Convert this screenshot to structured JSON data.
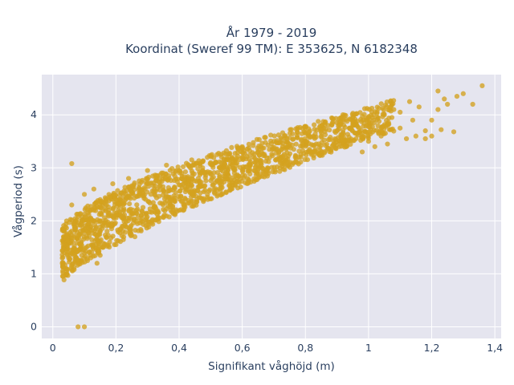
{
  "chart_data": {
    "type": "scatter",
    "title_lines": [
      "År 1979 - 2019",
      "Koordinat (Sweref 99 TM): E 353625, N 6182348"
    ],
    "xlabel": "Signifikant våghöjd (m)",
    "ylabel": "Vågperiod (s)",
    "xlim": [
      -0.035,
      1.42
    ],
    "ylim": [
      -0.22,
      4.76
    ],
    "xticks": [
      0,
      0.2,
      0.4,
      0.6,
      0.8,
      1,
      1.2,
      1.4
    ],
    "xtick_labels": [
      "0",
      "0,2",
      "0,4",
      "0,6",
      "0,8",
      "1",
      "1,2",
      "1,4"
    ],
    "yticks": [
      0,
      1,
      2,
      3,
      4
    ],
    "ytick_labels": [
      "0",
      "1",
      "2",
      "3",
      "4"
    ],
    "grid": true,
    "point_color": "#d4a21f",
    "plot_bg": "#e5e5ef",
    "series": [
      {
        "x": [
          0.08,
          0.1,
          0.06,
          0.06,
          0.03,
          0.04,
          0.05,
          0.07,
          0.09,
          0.11,
          0.13,
          0.15,
          0.17,
          0.2,
          0.25,
          0.3,
          0.35,
          0.4,
          0.45,
          0.5,
          0.55,
          0.6,
          0.65,
          0.7,
          0.75,
          0.8,
          0.85,
          0.9,
          0.95,
          1.0,
          1.05,
          1.1,
          1.02,
          1.06,
          1.12,
          1.15,
          1.18,
          1.2,
          1.22,
          1.25,
          1.28,
          1.33,
          1.36,
          1.18,
          1.2,
          1.23,
          1.27,
          1.1,
          1.13,
          0.98,
          1.0,
          1.22,
          1.14,
          0.12,
          0.14,
          0.16,
          0.18,
          0.22,
          0.28,
          0.32,
          0.38,
          0.42,
          0.48,
          0.52,
          0.58,
          0.62,
          0.68,
          0.72,
          0.78,
          0.82,
          0.88,
          0.92,
          0.96,
          0.1,
          0.13,
          0.19,
          0.24,
          0.3,
          0.36,
          0.44,
          0.52,
          0.6,
          0.7,
          0.8,
          0.9,
          1.08,
          1.16,
          1.24,
          1.3,
          0.85,
          0.93,
          1.04,
          0.11,
          0.15,
          0.2,
          0.26
        ],
        "y": [
          0.0,
          0.0,
          3.08,
          2.3,
          1.2,
          1.5,
          1.3,
          1.4,
          1.6,
          1.9,
          2.2,
          2.4,
          2.3,
          2.4,
          2.55,
          2.7,
          2.85,
          2.95,
          3.05,
          3.1,
          3.15,
          3.2,
          3.3,
          3.35,
          3.45,
          3.5,
          3.6,
          3.7,
          3.8,
          3.95,
          4.0,
          4.05,
          3.4,
          3.45,
          3.55,
          3.6,
          3.55,
          3.9,
          4.1,
          4.2,
          4.35,
          4.2,
          4.55,
          3.7,
          3.6,
          3.72,
          3.68,
          3.75,
          4.25,
          3.3,
          3.5,
          4.45,
          3.9,
          1.3,
          1.2,
          1.5,
          1.6,
          1.9,
          2.1,
          2.25,
          2.4,
          2.55,
          2.65,
          2.75,
          2.85,
          2.95,
          3.0,
          3.1,
          3.2,
          3.3,
          3.35,
          3.45,
          3.55,
          2.5,
          2.6,
          2.7,
          2.8,
          2.95,
          3.05,
          3.15,
          3.25,
          3.4,
          3.5,
          3.65,
          3.85,
          4.1,
          4.15,
          4.3,
          4.4,
          3.25,
          3.4,
          3.6,
          1.25,
          1.35,
          1.55,
          1.7
        ]
      }
    ]
  }
}
